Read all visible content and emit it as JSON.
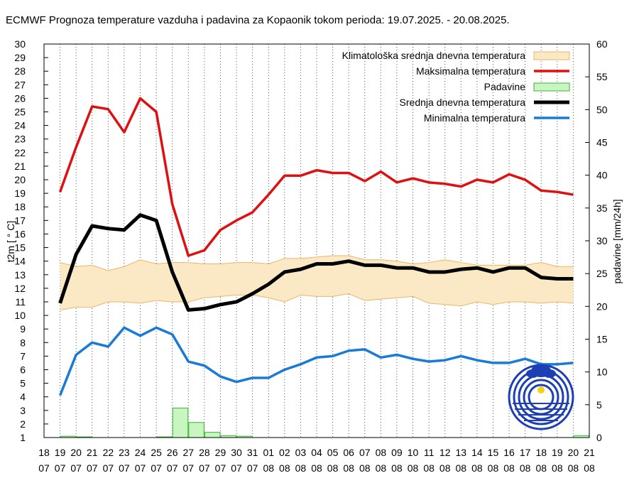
{
  "chart_data": {
    "type": "line",
    "title": "ECMWF Prognoza temperature vazduha i padavina za Kopaonik tokom perioda: 19.07.2025. - 20.08.2025.",
    "ylabel": "t2m [ ° C]",
    "y2label": "padavine [mm/24h]",
    "ylim": [
      1,
      30
    ],
    "y2lim": [
      0,
      60
    ],
    "yticks": [
      "1",
      "2",
      "3",
      "4",
      "5",
      "6",
      "7",
      "8",
      "9",
      "10",
      "11",
      "12",
      "13",
      "14",
      "15",
      "16",
      "17",
      "18",
      "19",
      "20",
      "21",
      "22",
      "23",
      "24",
      "25",
      "26",
      "27",
      "28",
      "29",
      "30"
    ],
    "y2ticks": [
      "0",
      "5",
      "10",
      "15",
      "20",
      "25",
      "30",
      "35",
      "40",
      "45",
      "50",
      "55",
      "60"
    ],
    "xticks": [
      {
        "d": "18",
        "m": "07"
      },
      {
        "d": "19",
        "m": "07"
      },
      {
        "d": "20",
        "m": "07"
      },
      {
        "d": "21",
        "m": "07"
      },
      {
        "d": "22",
        "m": "07"
      },
      {
        "d": "23",
        "m": "07"
      },
      {
        "d": "24",
        "m": "07"
      },
      {
        "d": "25",
        "m": "07"
      },
      {
        "d": "26",
        "m": "07"
      },
      {
        "d": "27",
        "m": "07"
      },
      {
        "d": "28",
        "m": "07"
      },
      {
        "d": "29",
        "m": "07"
      },
      {
        "d": "30",
        "m": "07"
      },
      {
        "d": "31",
        "m": "07"
      },
      {
        "d": "01",
        "m": "08"
      },
      {
        "d": "02",
        "m": "08"
      },
      {
        "d": "03",
        "m": "08"
      },
      {
        "d": "04",
        "m": "08"
      },
      {
        "d": "05",
        "m": "08"
      },
      {
        "d": "06",
        "m": "08"
      },
      {
        "d": "07",
        "m": "08"
      },
      {
        "d": "08",
        "m": "08"
      },
      {
        "d": "09",
        "m": "08"
      },
      {
        "d": "10",
        "m": "08"
      },
      {
        "d": "11",
        "m": "08"
      },
      {
        "d": "12",
        "m": "08"
      },
      {
        "d": "13",
        "m": "08"
      },
      {
        "d": "14",
        "m": "08"
      },
      {
        "d": "15",
        "m": "08"
      },
      {
        "d": "16",
        "m": "08"
      },
      {
        "d": "17",
        "m": "08"
      },
      {
        "d": "18",
        "m": "08"
      },
      {
        "d": "19",
        "m": "08"
      },
      {
        "d": "20",
        "m": "08"
      },
      {
        "d": "21",
        "m": "08"
      }
    ],
    "x_day_index": [
      1,
      2,
      3,
      4,
      5,
      6,
      7,
      8,
      9,
      10,
      11,
      12,
      13,
      14,
      15,
      16,
      17,
      18,
      19,
      20,
      21,
      22,
      23,
      24,
      25,
      26,
      27,
      28,
      29,
      30,
      31,
      32,
      33
    ],
    "clim_upper": [
      13.9,
      13.6,
      13.7,
      13.3,
      13.6,
      14.1,
      13.8,
      13.9,
      13.9,
      13.8,
      13.8,
      13.9,
      13.9,
      13.8,
      14.2,
      14.2,
      14.3,
      14.4,
      14.4,
      14.1,
      14.1,
      14.0,
      13.8,
      13.9,
      14.1,
      13.9,
      13.7,
      13.7,
      13.7,
      13.7,
      13.9,
      13.6,
      13.6
    ],
    "clim_lower": [
      10.4,
      10.6,
      10.6,
      11.0,
      11.0,
      10.9,
      11.1,
      11.0,
      11.0,
      11.3,
      11.4,
      11.5,
      11.5,
      11.3,
      11.0,
      11.5,
      11.4,
      11.4,
      11.6,
      11.1,
      11.2,
      11.3,
      11.4,
      10.9,
      10.8,
      10.7,
      11.0,
      10.8,
      11.0,
      11.0,
      10.9,
      11.0,
      10.9
    ],
    "series": [
      {
        "name": "Maksimalna temperatura",
        "color": "#dd1111",
        "values": [
          19.1,
          22.4,
          25.4,
          25.2,
          23.5,
          26.0,
          25.0,
          18.2,
          14.4,
          14.8,
          16.3,
          17.0,
          17.6,
          18.9,
          20.3,
          20.3,
          20.7,
          20.5,
          20.5,
          19.9,
          20.6,
          19.8,
          20.1,
          19.8,
          19.7,
          19.5,
          20.0,
          19.8,
          20.4,
          20.0,
          19.2,
          19.1,
          18.9
        ]
      },
      {
        "name": "Srednja dnevna temperatura",
        "color": "#000000",
        "values": [
          10.9,
          14.5,
          16.6,
          16.4,
          16.3,
          17.4,
          17.0,
          13.2,
          10.4,
          10.5,
          10.8,
          11.0,
          11.6,
          12.3,
          13.2,
          13.4,
          13.8,
          13.8,
          14.0,
          13.7,
          13.7,
          13.5,
          13.5,
          13.2,
          13.2,
          13.4,
          13.5,
          13.2,
          13.5,
          13.5,
          12.8,
          12.7,
          12.7
        ]
      },
      {
        "name": "Minimalna temperatura",
        "color": "#1a7ad6",
        "values": [
          4.1,
          7.1,
          8.0,
          7.7,
          9.1,
          8.5,
          9.1,
          8.6,
          6.6,
          6.3,
          5.5,
          5.1,
          5.4,
          5.4,
          6.0,
          6.4,
          6.9,
          7.0,
          7.4,
          7.5,
          6.9,
          7.1,
          6.8,
          6.6,
          6.7,
          7.0,
          6.7,
          6.5,
          6.5,
          6.8,
          6.4,
          6.4,
          6.5
        ]
      }
    ],
    "precip": {
      "name": "Padavine",
      "values": [
        0.2,
        0.1,
        0,
        0,
        0,
        0,
        0.1,
        4.5,
        2.3,
        0.8,
        0.3,
        0.2,
        0,
        0,
        0,
        0,
        0,
        0,
        0,
        0,
        0,
        0,
        0,
        0,
        0,
        0,
        0,
        0,
        0,
        0,
        0,
        0,
        0.3
      ]
    },
    "legend": [
      "Klimatološka srednja dnevna temperatura",
      "Maksimalna temperatura",
      "Padavine",
      "Srednja dnevna temperatura",
      "Minimalna temperatura"
    ],
    "legend_position": "top-right",
    "colors": {
      "clim_fill": "#fbe8c4",
      "clim_edge": "#e9b66a",
      "precip_fill": "#c8f5c0",
      "precip_edge": "#3cb43c",
      "logo": "#1e3fb4"
    }
  }
}
